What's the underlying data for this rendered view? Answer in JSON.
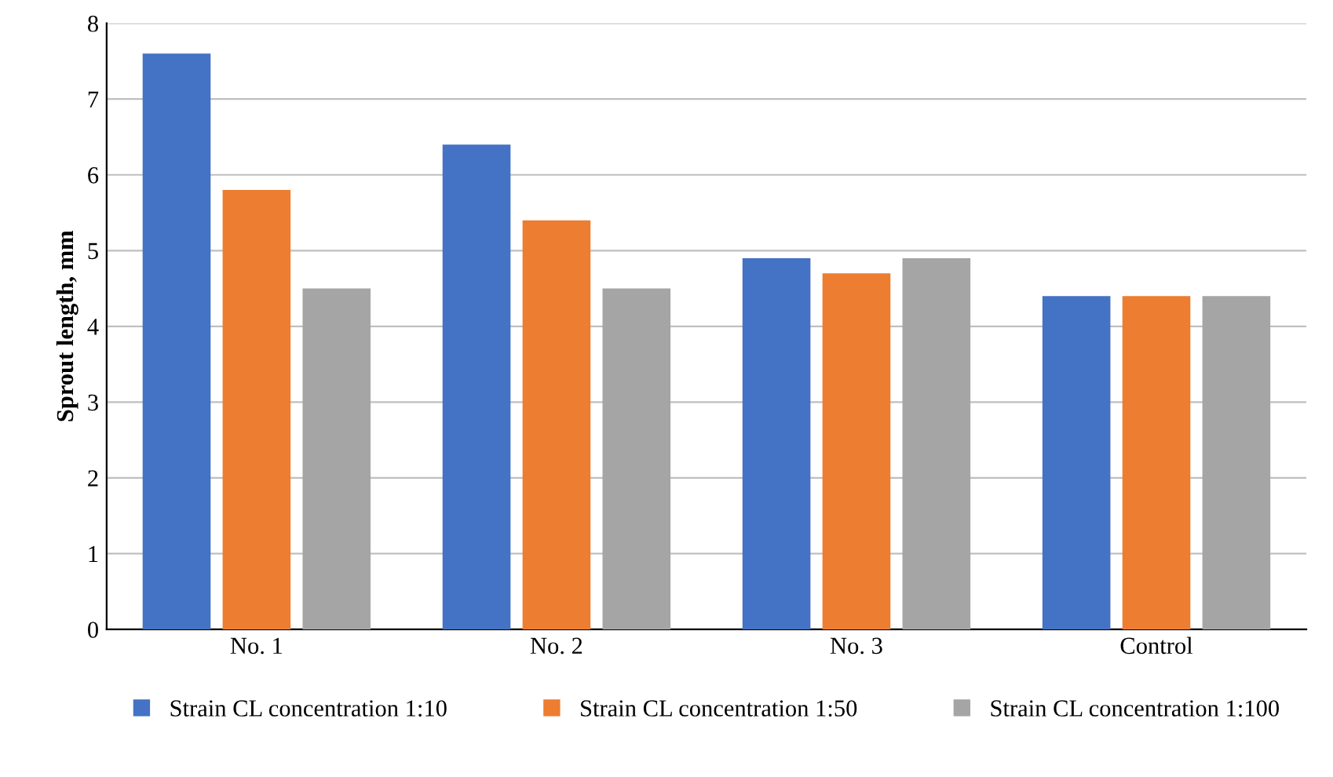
{
  "chart_data": {
    "type": "bar",
    "ylabel": "Sprout length, mm",
    "categories": [
      "No. 1",
      "No. 2",
      "No. 3",
      "Control"
    ],
    "series": [
      {
        "name": "Strain CL concentration 1:10",
        "color": "#4472c4",
        "values": [
          7.6,
          6.4,
          4.9,
          4.4
        ]
      },
      {
        "name": "Strain CL concentration 1:50",
        "color": "#ed7d31",
        "values": [
          5.8,
          5.4,
          4.7,
          4.4
        ]
      },
      {
        "name": "Strain CL concentration 1:100",
        "color": "#a5a5a5",
        "values": [
          4.5,
          4.5,
          4.9,
          4.4
        ]
      }
    ],
    "ylim": [
      0,
      8
    ],
    "yticks": [
      0,
      1,
      2,
      3,
      4,
      5,
      6,
      7,
      8
    ],
    "grid": "y",
    "legend": "bottom"
  }
}
